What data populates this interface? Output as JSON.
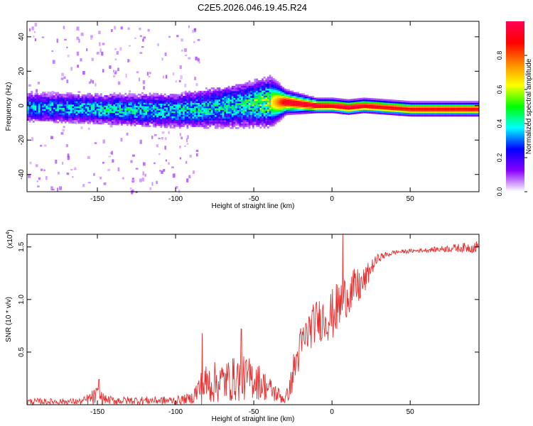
{
  "title": "C2E5.2026.046.19.45.R24",
  "chart_data": [
    {
      "type": "heatmap",
      "title": "C2E5.2026.046.19.45.R24",
      "xlabel": "Height of straight line (km)",
      "ylabel": "Frequency (Hz)",
      "xlim": [
        -195,
        94
      ],
      "ylim": [
        -50,
        49
      ],
      "x_ticks": [
        -150,
        -100,
        -50,
        0,
        50
      ],
      "x_tick_labels": [
        "-150",
        "-100",
        "-50",
        "0",
        "50"
      ],
      "y_ticks": [
        40,
        20,
        0,
        -20,
        -40
      ],
      "y_tick_labels": [
        "40",
        "20",
        "0",
        "-20",
        "-40"
      ],
      "colorbar": {
        "label": "Normalized spectral amplitude",
        "range": [
          0,
          1
        ],
        "ticks": [
          0.0,
          0.2,
          0.4,
          0.6,
          0.8
        ],
        "tick_labels": [
          "0.0",
          "0.2",
          "0.4",
          "0.6",
          "0.8"
        ],
        "colors": [
          "#ffffff",
          "#8800ff",
          "#0000ff",
          "#00ffff",
          "#00ff00",
          "#ffff00",
          "#ff8800",
          "#ff0000",
          "#ff0055"
        ]
      },
      "ridge": {
        "x": [
          -195,
          -150,
          -100,
          -60,
          -40,
          -30,
          -20,
          -10,
          0,
          10,
          20,
          50,
          94
        ],
        "center_freq": [
          -1,
          -2,
          -3,
          0,
          2,
          2,
          1,
          0,
          0,
          -1,
          0,
          -2,
          -2
        ],
        "half_width_hz": [
          7,
          7,
          8,
          10,
          11,
          5,
          4,
          3,
          3,
          3,
          3,
          3,
          3
        ],
        "peak_amplitude": [
          0.35,
          0.4,
          0.4,
          0.45,
          0.6,
          0.95,
          0.95,
          1.0,
          0.95,
          1.0,
          0.95,
          0.9,
          0.9
        ]
      }
    },
    {
      "type": "line",
      "xlabel": "Height of straight line (km)",
      "ylabel": "SNR (10 * v/v)",
      "yscale_label": "(x10",
      "yscale_exp": "4",
      "color": "#e83030",
      "xlim": [
        -195,
        94
      ],
      "ylim": [
        0,
        1.62
      ],
      "x_ticks": [
        -150,
        -100,
        -50,
        0,
        50
      ],
      "x_tick_labels": [
        "-150",
        "-100",
        "-50",
        "0",
        "50"
      ],
      "y_ticks": [
        0.5,
        1.0,
        1.5
      ],
      "y_tick_labels": [
        "0.5",
        "1.0",
        "1.5"
      ],
      "envelope": {
        "x": [
          -195,
          -160,
          -150,
          -145,
          -140,
          -100,
          -90,
          -85,
          -80,
          -70,
          -60,
          -50,
          -40,
          -30,
          -27,
          -25,
          -20,
          -15,
          -10,
          0,
          5,
          10,
          15,
          20,
          25,
          30,
          40,
          50,
          60,
          70,
          80,
          94
        ],
        "mean": [
          0.03,
          0.03,
          0.08,
          0.05,
          0.04,
          0.04,
          0.06,
          0.15,
          0.2,
          0.22,
          0.25,
          0.25,
          0.15,
          0.05,
          0.15,
          0.3,
          0.55,
          0.7,
          0.8,
          0.85,
          0.95,
          1.05,
          1.1,
          1.15,
          1.3,
          1.4,
          1.45,
          1.46,
          1.47,
          1.48,
          1.49,
          1.5
        ],
        "noise": [
          0.03,
          0.03,
          0.1,
          0.04,
          0.04,
          0.04,
          0.05,
          0.15,
          0.2,
          0.2,
          0.22,
          0.2,
          0.12,
          0.05,
          0.1,
          0.18,
          0.2,
          0.2,
          0.2,
          0.25,
          0.25,
          0.2,
          0.2,
          0.15,
          0.08,
          0.04,
          0.02,
          0.02,
          0.02,
          0.03,
          0.04,
          0.06
        ]
      },
      "spikes": [
        {
          "x": 7,
          "y": 1.62
        },
        {
          "x": -83,
          "y": 0.68
        },
        {
          "x": -58,
          "y": 0.72
        },
        {
          "x": -149,
          "y": 0.24
        }
      ]
    }
  ]
}
